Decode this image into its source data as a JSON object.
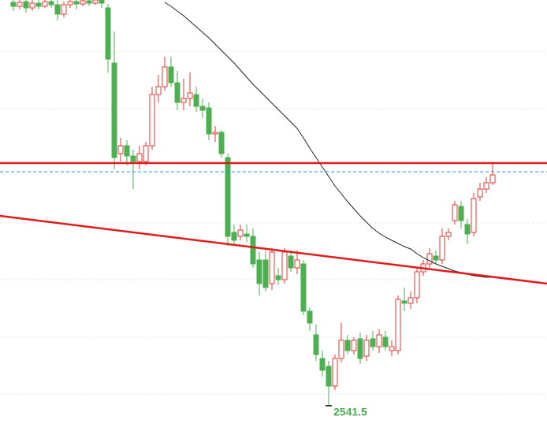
{
  "chart_data": {
    "type": "candlestick",
    "categories": [
      null,
      null,
      null,
      null,
      null,
      null,
      null,
      null,
      null,
      null,
      null,
      null,
      null,
      null,
      null,
      null,
      null,
      null,
      null,
      null,
      null,
      null,
      null,
      null,
      null,
      null,
      null,
      null,
      null,
      null,
      null,
      null,
      null,
      null,
      null,
      null,
      null,
      null,
      null,
      null,
      null,
      null,
      null,
      null,
      null,
      null,
      null,
      null,
      null,
      null,
      null,
      null,
      null,
      null,
      null,
      null,
      null,
      null,
      null,
      null,
      null,
      null,
      null,
      null,
      null,
      null,
      null,
      null,
      null,
      null,
      null,
      null,
      null,
      null,
      null,
      null,
      null
    ],
    "open": [
      2797.5,
      2795,
      2798,
      2794,
      2797,
      2795,
      2798,
      2796,
      2790,
      2796,
      2798,
      2796.5,
      2798.5,
      2797,
      2799,
      2794,
      2759,
      2701.5,
      2706.5,
      2700,
      2696.5,
      2696.5,
      2706.5,
      2739,
      2744,
      2756.5,
      2746.5,
      2734,
      2736.5,
      2739,
      2731.5,
      2730.5,
      2714,
      2715,
      2699,
      2651.5,
      2649,
      2650.5,
      2649,
      2634,
      2634,
      2619,
      2624,
      2621.5,
      2636.5,
      2629,
      2631.5,
      2601.5,
      2586.5,
      2571.5,
      2566.5,
      2554,
      2571.5,
      2583,
      2576.5,
      2584,
      2573,
      2584,
      2579,
      2585,
      2576.5,
      2576.5,
      2608,
      2606.5,
      2610,
      2626.5,
      2631.5,
      2636.5,
      2634,
      2649,
      2659,
      2668,
      2656.5,
      2651.5,
      2674,
      2679,
      2683
    ],
    "high": [
      2801.5,
      2801.5,
      2801.5,
      2801.5,
      2801.5,
      2801.5,
      2801.5,
      2799,
      2798,
      2801.5,
      2801.5,
      2801.5,
      2801.5,
      2801.5,
      2801.5,
      2796.5,
      2779,
      2711.5,
      2710,
      2704,
      2706.5,
      2709,
      2744,
      2751.5,
      2763,
      2763,
      2754,
      2749,
      2753,
      2744,
      2736.5,
      2734,
      2719,
      2716.5,
      2701.5,
      2656.5,
      2656.5,
      2656.5,
      2654,
      2639,
      2640,
      2641.5,
      2629,
      2641.5,
      2640,
      2640,
      2634,
      2604,
      2593,
      2576.5,
      2570,
      2574,
      2594,
      2586.5,
      2585,
      2588,
      2586.5,
      2589,
      2590,
      2589,
      2583,
      2611.5,
      2616.5,
      2614,
      2629,
      2634,
      2641.5,
      2640,
      2654,
      2654,
      2671.5,
      2671.5,
      2660,
      2676.5,
      2683,
      2686.5,
      2696
    ],
    "low": [
      2792,
      2793,
      2791,
      2792,
      2793,
      2794,
      2794,
      2786,
      2788,
      2794,
      2793,
      2795,
      2795,
      2796,
      2794,
      2753,
      2691.5,
      2696.5,
      2694,
      2679,
      2691.5,
      2694,
      2704,
      2734,
      2741.5,
      2744,
      2729,
      2729,
      2731.5,
      2728,
      2724,
      2710,
      2709,
      2699,
      2643,
      2644,
      2646.5,
      2645,
      2629,
      2611.5,
      2614,
      2615,
      2618,
      2619,
      2626.5,
      2625,
      2599,
      2589,
      2570,
      2560,
      2541.5,
      2551.5,
      2569,
      2574,
      2574,
      2568,
      2570,
      2576.5,
      2575,
      2576.5,
      2573,
      2574,
      2601.5,
      2603,
      2606.5,
      2624,
      2629,
      2631.5,
      2631.5,
      2646.5,
      2656.5,
      2654,
      2644,
      2649,
      2671.5,
      2676.5,
      2681.5
    ],
    "close": [
      2795,
      2797.5,
      2794,
      2797,
      2795,
      2798,
      2796,
      2790,
      2796,
      2798,
      2796.5,
      2798.5,
      2797,
      2799,
      2797,
      2761.5,
      2699,
      2706.5,
      2700,
      2696.5,
      2701.5,
      2706.5,
      2739,
      2744,
      2756.5,
      2746.5,
      2734,
      2736.5,
      2740,
      2731.5,
      2729,
      2714,
      2715,
      2701.5,
      2649,
      2646.5,
      2653,
      2649,
      2631.5,
      2619,
      2616.5,
      2639,
      2621.5,
      2639,
      2629,
      2634,
      2601.5,
      2594,
      2574,
      2564,
      2554,
      2571.5,
      2583,
      2576.5,
      2583,
      2571.5,
      2583,
      2579,
      2586.5,
      2579,
      2579,
      2609,
      2606.5,
      2610,
      2626.5,
      2631.5,
      2638,
      2634,
      2649,
      2651.5,
      2669,
      2659,
      2650.5,
      2673,
      2679,
      2683,
      2688
    ],
    "up_color": "#e53935",
    "down_color": "#4caf50",
    "moving_average": {
      "color": "#222222",
      "values": [
        null,
        null,
        null,
        null,
        null,
        null,
        null,
        null,
        null,
        null,
        null,
        null,
        null,
        null,
        null,
        null,
        null,
        null,
        null,
        null,
        null,
        null,
        null,
        null,
        2797.5,
        2795,
        2792,
        2789,
        2785.5,
        2782,
        2778.5,
        2775,
        2771,
        2767,
        2763,
        2759,
        2754.5,
        2750,
        2745.5,
        2741.5,
        2737.5,
        2733.5,
        2729.5,
        2725.5,
        2721.5,
        2717.5,
        2711.5,
        2705,
        2699,
        2693,
        2687,
        2681,
        2676,
        2671,
        2666.5,
        2662,
        2658,
        2654,
        2651,
        2648.5,
        2646.5,
        2644.5,
        2642.5,
        2641,
        2638,
        2635.5,
        2633.5,
        2631.5,
        2630,
        2628.5,
        2627,
        2626,
        2625,
        2624,
        2623.5,
        2623,
        2623
      ]
    },
    "hlines": [
      {
        "value": 2695.5,
        "color": "#e01b1b",
        "style": "solid"
      },
      {
        "value": 2690,
        "color": "#2196f3",
        "style": "dashed"
      }
    ],
    "trendline": {
      "color": "#e01b1b",
      "values": [
        2662,
        2619
      ]
    },
    "gridlines": [
      2766.5,
      2730,
      2657.5,
      2621.5,
      2585,
      2549
    ],
    "low_label_color": "#4caf50",
    "ylim": [
      2528,
      2799
    ]
  }
}
